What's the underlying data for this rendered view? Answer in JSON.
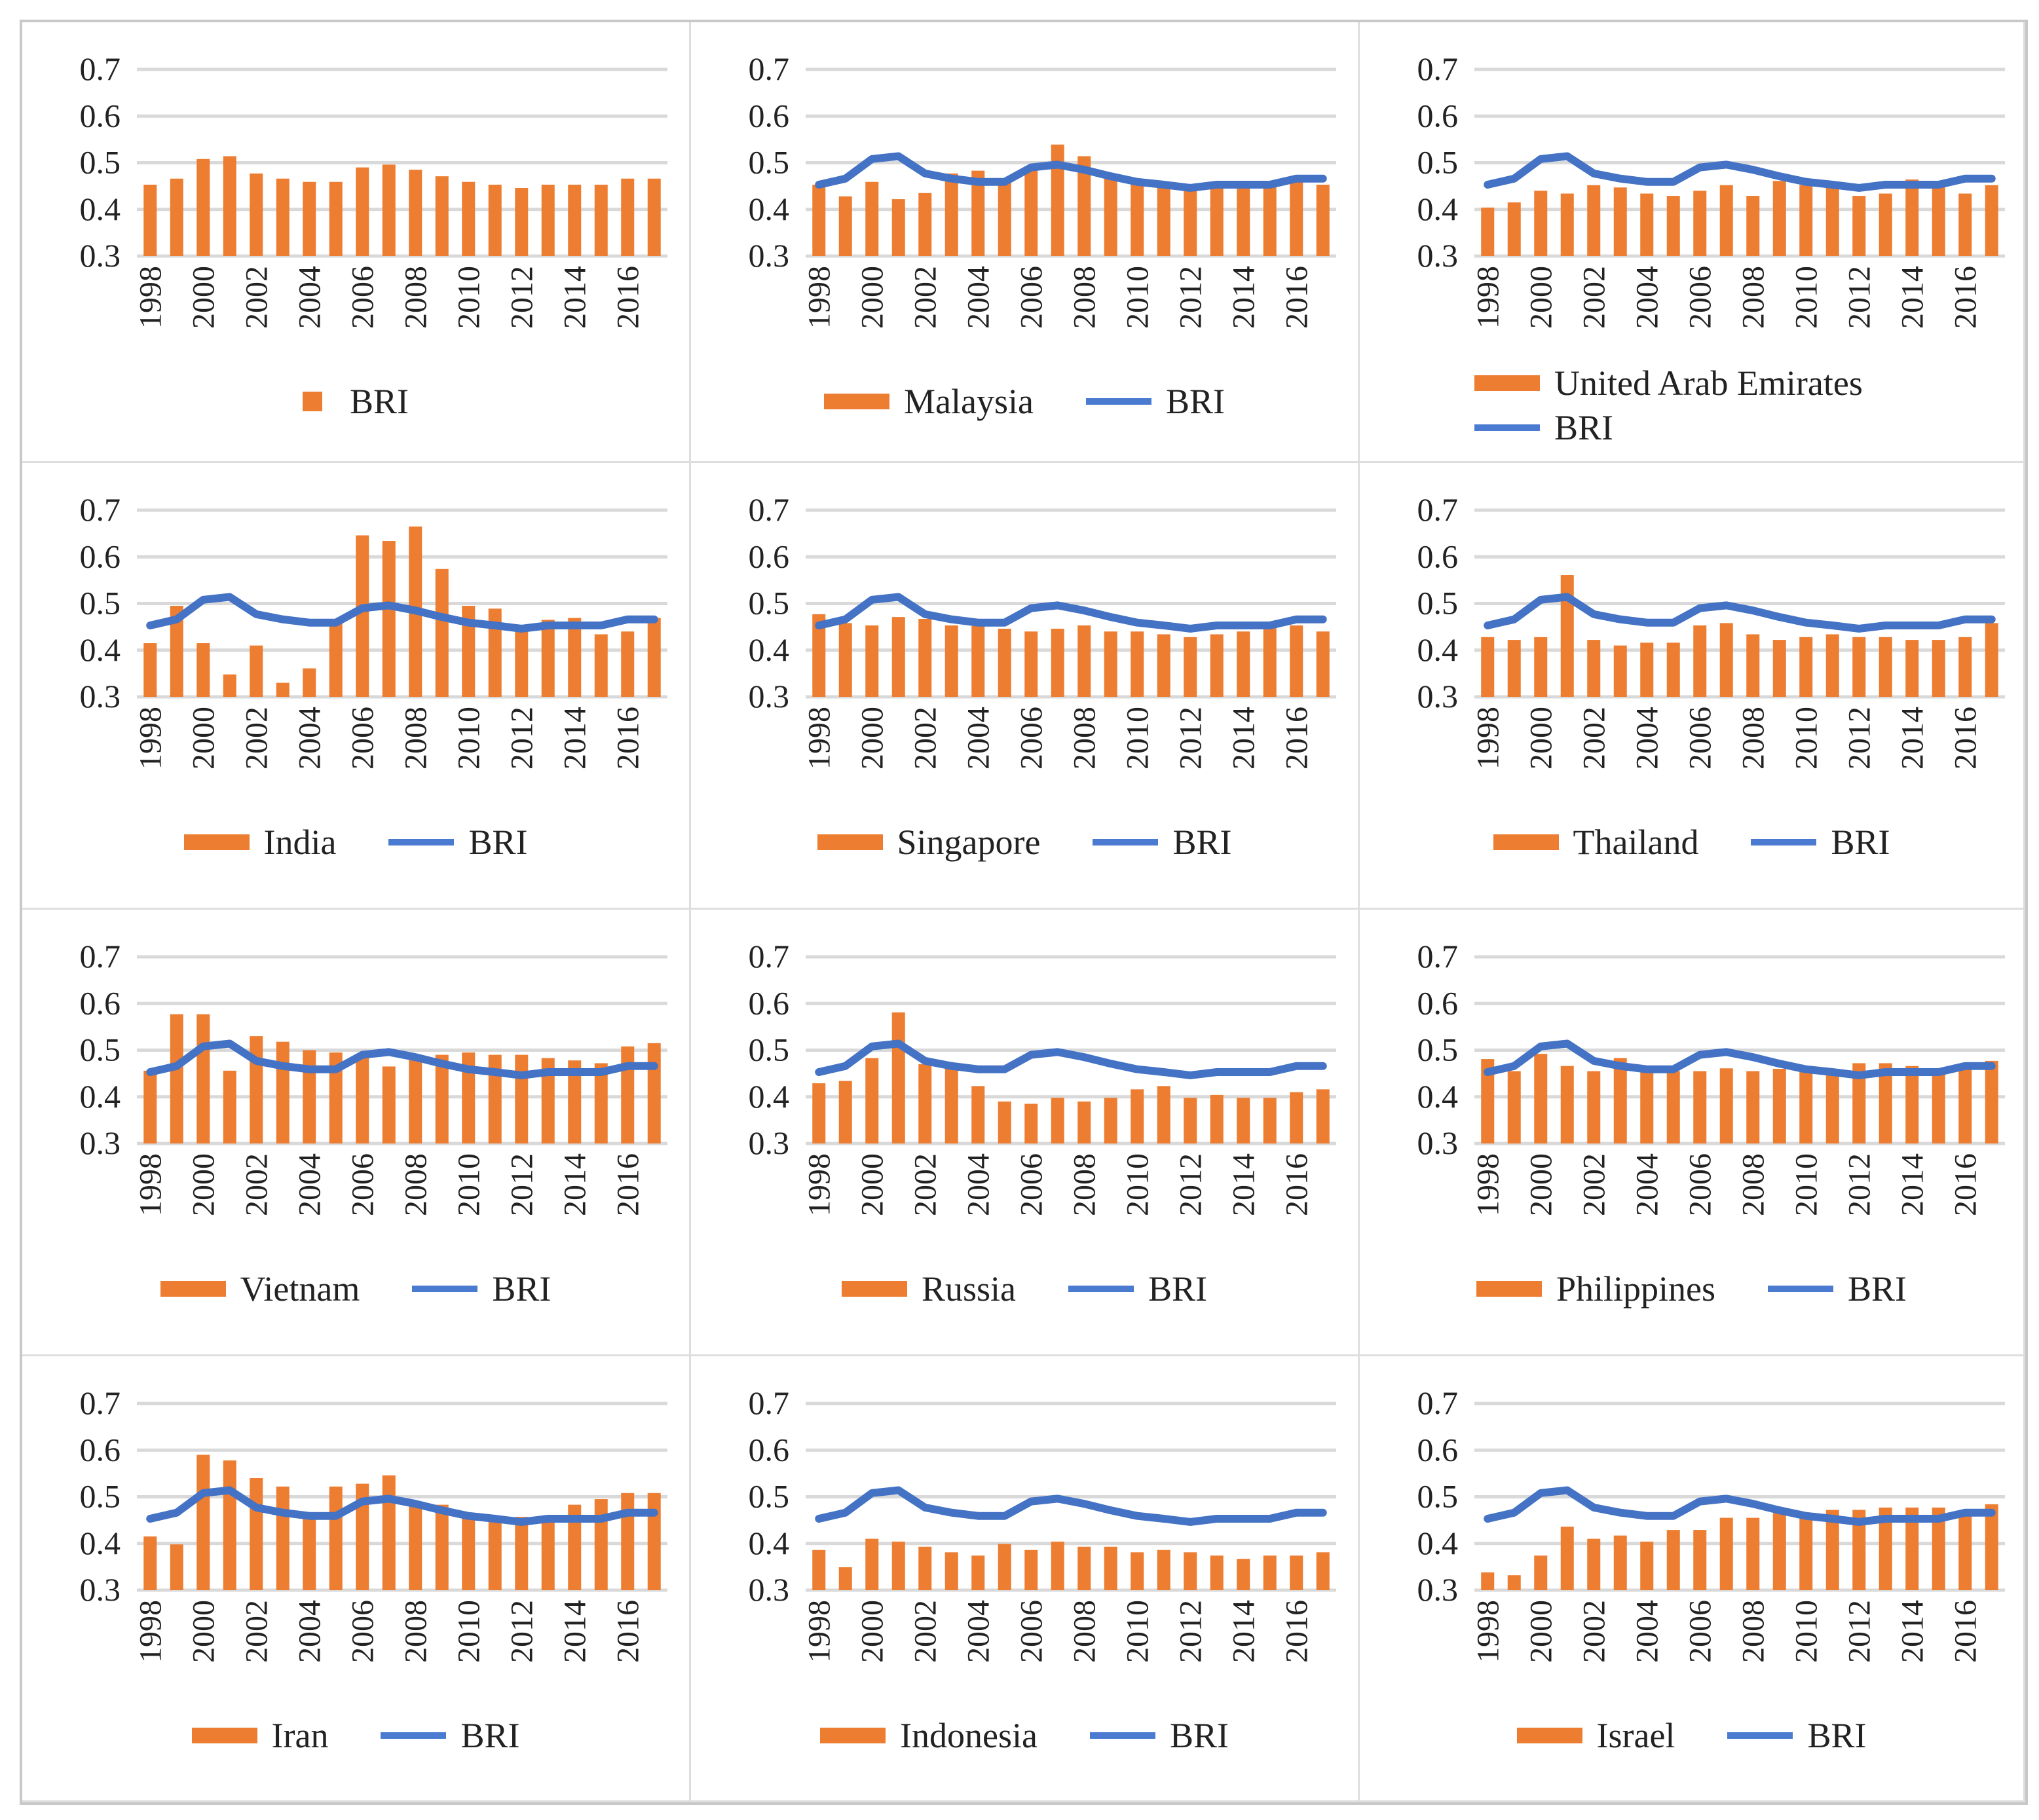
{
  "chart_data": {
    "type": "bar+line small multiples",
    "colors": {
      "country_bar": "#ED7D31",
      "bri_line": "#4472C4"
    },
    "categories": [
      "1998",
      "1999",
      "2000",
      "2001",
      "2002",
      "2003",
      "2004",
      "2005",
      "2006",
      "2007",
      "2008",
      "2009",
      "2010",
      "2011",
      "2012",
      "2013",
      "2014",
      "2015",
      "2016",
      "2017"
    ],
    "ylim": [
      0.3,
      0.7
    ],
    "yticks": [
      "0.7",
      "0.6",
      "0.5",
      "0.4",
      "0.3"
    ],
    "grid": true,
    "bri_series": {
      "name": "BRI",
      "values": [
        0.453,
        0.466,
        0.508,
        0.514,
        0.477,
        0.466,
        0.459,
        0.459,
        0.49,
        0.496,
        0.485,
        0.471,
        0.459,
        0.453,
        0.446,
        0.453,
        0.453,
        0.453,
        0.466,
        0.466
      ]
    },
    "panels": [
      {
        "country": "BRI",
        "legend_label": "BRI",
        "bars_only": true,
        "values": [
          0.453,
          0.466,
          0.508,
          0.514,
          0.477,
          0.466,
          0.459,
          0.459,
          0.49,
          0.496,
          0.485,
          0.471,
          0.459,
          0.453,
          0.446,
          0.453,
          0.453,
          0.453,
          0.466,
          0.466
        ]
      },
      {
        "country": "Malaysia",
        "legend_label": "Malaysia",
        "values": [
          0.453,
          0.428,
          0.459,
          0.422,
          0.435,
          0.477,
          0.483,
          0.46,
          0.49,
          0.539,
          0.514,
          0.47,
          0.46,
          0.455,
          0.441,
          0.448,
          0.452,
          0.452,
          0.466,
          0.453
        ]
      },
      {
        "country": "United Arab Emirates",
        "legend_label": "United Arab Emirates",
        "two_line_legend": true,
        "values": [
          0.404,
          0.415,
          0.44,
          0.434,
          0.452,
          0.447,
          0.434,
          0.429,
          0.44,
          0.452,
          0.429,
          0.461,
          0.452,
          0.448,
          0.429,
          0.434,
          0.464,
          0.452,
          0.434,
          0.452
        ]
      },
      {
        "country": "India",
        "legend_label": "India",
        "values": [
          0.415,
          0.495,
          0.415,
          0.348,
          0.41,
          0.33,
          0.361,
          0.467,
          0.646,
          0.634,
          0.665,
          0.574,
          0.495,
          0.489,
          0.445,
          0.465,
          0.469,
          0.434,
          0.44,
          0.469
        ]
      },
      {
        "country": "Singapore",
        "legend_label": "Singapore",
        "values": [
          0.477,
          0.458,
          0.453,
          0.471,
          0.467,
          0.453,
          0.452,
          0.446,
          0.44,
          0.446,
          0.453,
          0.44,
          0.44,
          0.434,
          0.428,
          0.434,
          0.44,
          0.449,
          0.453,
          0.44
        ]
      },
      {
        "country": "Thailand",
        "legend_label": "Thailand",
        "values": [
          0.428,
          0.422,
          0.428,
          0.561,
          0.422,
          0.41,
          0.416,
          0.416,
          0.453,
          0.458,
          0.434,
          0.422,
          0.428,
          0.434,
          0.428,
          0.428,
          0.422,
          0.422,
          0.428,
          0.458
        ]
      },
      {
        "country": "Vietnam",
        "legend_label": "Vietnam",
        "values": [
          0.456,
          0.577,
          0.577,
          0.456,
          0.53,
          0.518,
          0.5,
          0.495,
          0.49,
          0.465,
          0.48,
          0.49,
          0.495,
          0.49,
          0.49,
          0.483,
          0.478,
          0.472,
          0.508,
          0.515
        ]
      },
      {
        "country": "Russia",
        "legend_label": "Russia",
        "values": [
          0.429,
          0.434,
          0.483,
          0.581,
          0.47,
          0.46,
          0.423,
          0.39,
          0.385,
          0.398,
          0.39,
          0.398,
          0.416,
          0.423,
          0.398,
          0.404,
          0.398,
          0.398,
          0.41,
          0.416
        ]
      },
      {
        "country": "Philippines",
        "legend_label": "Philippines",
        "values": [
          0.481,
          0.455,
          0.492,
          0.466,
          0.455,
          0.483,
          0.457,
          0.455,
          0.455,
          0.461,
          0.455,
          0.46,
          0.457,
          0.46,
          0.472,
          0.472,
          0.466,
          0.46,
          0.47,
          0.477
        ]
      },
      {
        "country": "Iran",
        "legend_label": "Iran",
        "values": [
          0.415,
          0.398,
          0.59,
          0.578,
          0.54,
          0.522,
          0.46,
          0.522,
          0.528,
          0.546,
          0.48,
          0.483,
          0.455,
          0.455,
          0.457,
          0.454,
          0.483,
          0.495,
          0.508,
          0.508
        ]
      },
      {
        "country": "Indonesia",
        "legend_label": "Indonesia",
        "values": [
          0.386,
          0.349,
          0.41,
          0.404,
          0.393,
          0.381,
          0.374,
          0.399,
          0.386,
          0.404,
          0.393,
          0.393,
          0.381,
          0.386,
          0.381,
          0.374,
          0.367,
          0.374,
          0.374,
          0.381
        ]
      },
      {
        "country": "Israel",
        "legend_label": "Israel",
        "values": [
          0.338,
          0.332,
          0.374,
          0.436,
          0.41,
          0.417,
          0.404,
          0.429,
          0.429,
          0.455,
          0.455,
          0.465,
          0.465,
          0.472,
          0.472,
          0.477,
          0.477,
          0.477,
          0.47,
          0.484
        ]
      }
    ]
  }
}
